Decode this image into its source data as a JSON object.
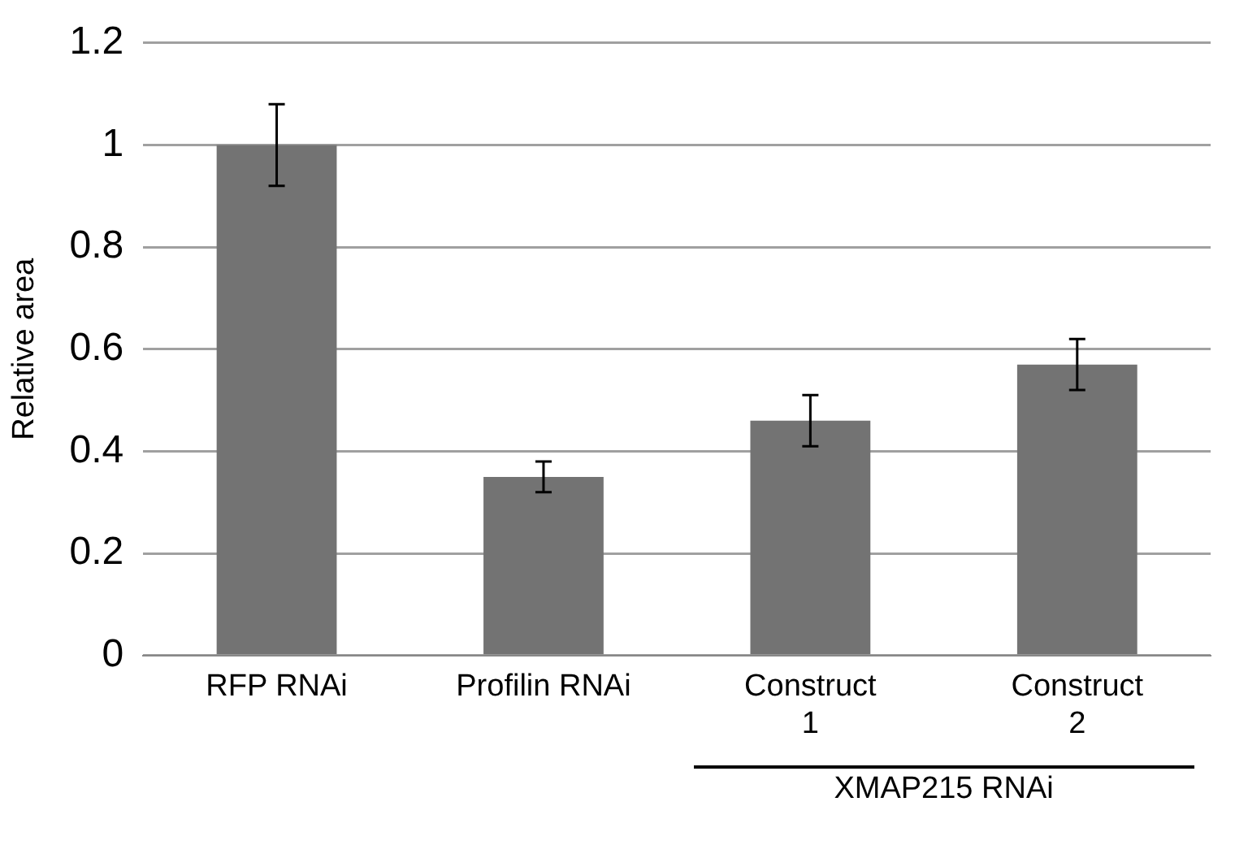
{
  "chart_data": {
    "type": "bar",
    "ylabel": "Relative area",
    "categories": [
      "RFP RNAi",
      "Profilin RNAi",
      "Construct\n1",
      "Construct\n2"
    ],
    "values": [
      1.0,
      0.35,
      0.46,
      0.57
    ],
    "errors": [
      0.08,
      0.03,
      0.05,
      0.05
    ],
    "color": "#737373",
    "ylim": [
      0,
      1.2
    ],
    "yticks": [
      0,
      0.2,
      0.4,
      0.6,
      0.8,
      1,
      1.2
    ],
    "grid": "y",
    "annotations": [
      "XMAP215 RNAi"
    ]
  }
}
